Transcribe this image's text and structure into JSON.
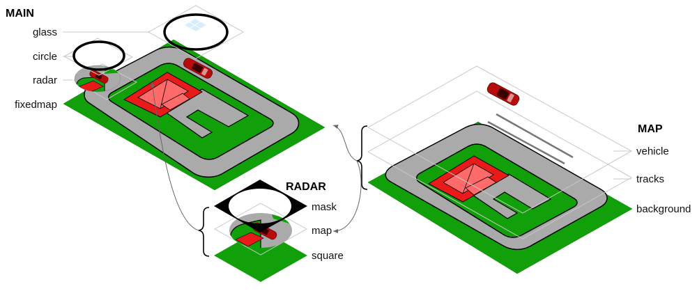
{
  "groups": {
    "main": {
      "title": "MAIN",
      "layers": [
        "glass",
        "circle",
        "radar",
        "fixedmap"
      ]
    },
    "radar": {
      "title": "RADAR",
      "layers": [
        "mask",
        "map",
        "square"
      ]
    },
    "map": {
      "title": "MAP",
      "layers": [
        "vehicle",
        "tracks",
        "background"
      ]
    }
  },
  "colors": {
    "grass": "#119f0a",
    "track": "#aaaaaa",
    "house": "#e81a1a",
    "house_shade": "#ff6b6b",
    "car": "#b80c0c",
    "glass": "#d6eefb"
  }
}
